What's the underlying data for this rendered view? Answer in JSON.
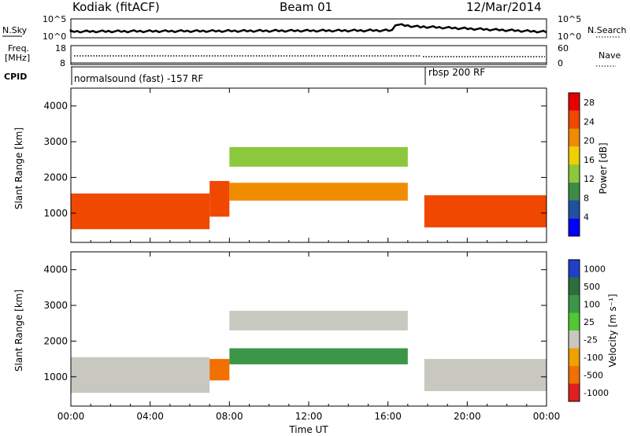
{
  "header": {
    "station": "Kodiak (fitACF)",
    "beam": "Beam 01",
    "date": "12/Mar/2014"
  },
  "noise_panel": {
    "left_label": "N.Sky",
    "right_label": "N.Search",
    "left_ticks": [
      "10^5",
      "10^0"
    ],
    "right_ticks": [
      "10^5",
      "10^0"
    ]
  },
  "freq_panel": {
    "left_label_1": "Freq.",
    "left_label_2": "[MHz]",
    "right_label": "Nave",
    "left_ticks": [
      "18",
      "8"
    ],
    "right_ticks": [
      "60",
      "0"
    ]
  },
  "cpid_panel": {
    "label": "CPID",
    "segments": [
      "normalsound (fast) -157 RF",
      "rbsp 200 RF"
    ]
  },
  "x_axis": {
    "label": "Time UT",
    "ticks": [
      "00:00",
      "04:00",
      "08:00",
      "12:00",
      "16:00",
      "20:00",
      "00:00"
    ]
  },
  "power_panel": {
    "ylabel": "Slant Range [km]",
    "yticks": [
      "1000",
      "2000",
      "3000",
      "4000"
    ],
    "colorbar_label": "Power [dB]",
    "colorbar_ticks": [
      "28",
      "24",
      "20",
      "16",
      "12",
      "8",
      "4"
    ]
  },
  "velocity_panel": {
    "ylabel": "Slant Range [km]",
    "yticks": [
      "1000",
      "2000",
      "3000",
      "4000"
    ],
    "colorbar_label": "Velocity [m s⁻¹]",
    "colorbar_ticks": [
      "1000",
      "500",
      "100",
      "25",
      "-25",
      "-100",
      "-500",
      "-1000"
    ]
  },
  "chart_data": [
    {
      "type": "heatmap",
      "title": "",
      "xlabel": "Time UT",
      "ylabel": "Slant Range [km]",
      "xlim": [
        "00:00",
        "24:00"
      ],
      "ylim": [
        180,
        4500
      ],
      "colorbar": {
        "label": "Power [dB]",
        "range": [
          0,
          30
        ],
        "ticks": [
          4,
          8,
          12,
          16,
          20,
          24,
          28
        ],
        "colors": [
          "#0000ff",
          "#2050a0",
          "#3c8c46",
          "#8cc83c",
          "#f0d000",
          "#f08c00",
          "#f04800",
          "#e60000"
        ]
      },
      "regions": [
        {
          "time": [
            "00:00",
            "07:00"
          ],
          "range_km": [
            550,
            1550
          ],
          "power_db": 26
        },
        {
          "time": [
            "07:00",
            "08:00"
          ],
          "range_km": [
            900,
            1900
          ],
          "power_db": 24
        },
        {
          "time": [
            "08:00",
            "17:00"
          ],
          "range_km": [
            1350,
            1850
          ],
          "power_db": 22
        },
        {
          "time": [
            "08:00",
            "17:00"
          ],
          "range_km": [
            2300,
            2850
          ],
          "power_db": 12
        },
        {
          "time": [
            "17:50",
            "24:00"
          ],
          "range_km": [
            600,
            1500
          ],
          "power_db": 26
        }
      ]
    },
    {
      "type": "heatmap",
      "title": "",
      "xlabel": "Time UT",
      "ylabel": "Slant Range [km]",
      "xlim": [
        "00:00",
        "24:00"
      ],
      "ylim": [
        180,
        4500
      ],
      "colorbar": {
        "label": "Velocity [m s⁻¹]",
        "ticks": [
          1000,
          500,
          100,
          25,
          -25,
          -100,
          -500,
          -1000
        ],
        "colors": [
          "#2040c8",
          "#2c6e3c",
          "#3c9648",
          "#50c832",
          "#c8c8c0",
          "#f0a000",
          "#f07000",
          "#e02020"
        ]
      },
      "regions": [
        {
          "time": [
            "00:00",
            "07:00"
          ],
          "range_km": [
            550,
            1550
          ],
          "velocity_ms": 0
        },
        {
          "time": [
            "07:00",
            "08:00"
          ],
          "range_km": [
            900,
            1500
          ],
          "velocity_ms": -300
        },
        {
          "time": [
            "08:00",
            "17:00"
          ],
          "range_km": [
            1350,
            1800
          ],
          "velocity_ms": 150
        },
        {
          "time": [
            "08:00",
            "17:00"
          ],
          "range_km": [
            2300,
            2850
          ],
          "velocity_ms": 0
        },
        {
          "time": [
            "17:50",
            "24:00"
          ],
          "range_km": [
            600,
            1500
          ],
          "velocity_ms": 0
        }
      ]
    }
  ]
}
